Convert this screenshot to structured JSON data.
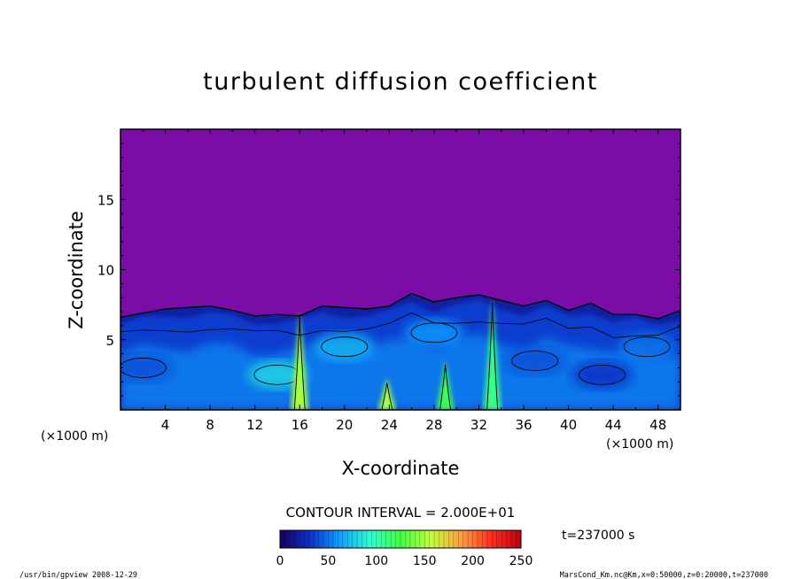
{
  "chart_data": {
    "type": "heatmap",
    "title": "turbulent diffusion coefficient",
    "xlabel": "X-coordinate",
    "ylabel": "Z-coordinate",
    "x_unit": "(×1000 m)",
    "y_unit": "(×1000 m)",
    "xlim": [
      0,
      50
    ],
    "ylim": [
      0,
      20
    ],
    "x_ticks": [
      "4",
      "8",
      "12",
      "16",
      "20",
      "24",
      "28",
      "32",
      "36",
      "40",
      "44",
      "48"
    ],
    "y_ticks": [
      "5",
      "10",
      "15"
    ],
    "contour_interval_label": "CONTOUR INTERVAL = 2.000E+01",
    "colorbar": {
      "min": 0,
      "max": 250,
      "ticks": [
        "0",
        "50",
        "100",
        "150",
        "200",
        "250"
      ],
      "colors": [
        "#14005a",
        "#1030c8",
        "#10a0ff",
        "#30ffd0",
        "#40ff40",
        "#c0ff40",
        "#ffa040",
        "#ff3020",
        "#c00010"
      ]
    },
    "background_color": "#7b0ca8",
    "time_label": "t=237000 s",
    "footer_left": "/usr/bin/gpview   2008-12-29",
    "footer_right": "MarsCond_Km.nc@Km,x=0:50000,z=0:20000,t=237000",
    "boundary_layer_top_km": [
      [
        0,
        6.6
      ],
      [
        2,
        6.9
      ],
      [
        4,
        7.2
      ],
      [
        6,
        7.3
      ],
      [
        8,
        7.4
      ],
      [
        10,
        7.1
      ],
      [
        12,
        6.7
      ],
      [
        14,
        6.8
      ],
      [
        16,
        6.7
      ],
      [
        18,
        7.4
      ],
      [
        20,
        7.3
      ],
      [
        22,
        7.2
      ],
      [
        24,
        7.4
      ],
      [
        26,
        8.3
      ],
      [
        28,
        7.7
      ],
      [
        30,
        8.0
      ],
      [
        32,
        8.2
      ],
      [
        34,
        7.8
      ],
      [
        36,
        7.4
      ],
      [
        38,
        7.8
      ],
      [
        40,
        7.1
      ],
      [
        42,
        7.6
      ],
      [
        44,
        6.8
      ],
      [
        46,
        6.8
      ],
      [
        48,
        6.5
      ],
      [
        50,
        7.1
      ]
    ],
    "plumes_km": [
      {
        "x": 16.0,
        "top": 7.0,
        "value": 150
      },
      {
        "x": 23.8,
        "top": 2.3,
        "value": 150
      },
      {
        "x": 33.2,
        "top": 8.0,
        "value": 110
      },
      {
        "x": 29.0,
        "top": 3.6,
        "value": 120
      }
    ],
    "cells_km": [
      {
        "x": 2.0,
        "z": 3.0,
        "value": 40
      },
      {
        "x": 14.0,
        "z": 2.5,
        "value": 80
      },
      {
        "x": 20.0,
        "z": 4.5,
        "value": 70
      },
      {
        "x": 28.0,
        "z": 5.5,
        "value": 60
      },
      {
        "x": 37.0,
        "z": 3.5,
        "value": 40
      },
      {
        "x": 43.0,
        "z": 2.5,
        "value": 30
      },
      {
        "x": 47.0,
        "z": 4.5,
        "value": 50
      }
    ]
  }
}
